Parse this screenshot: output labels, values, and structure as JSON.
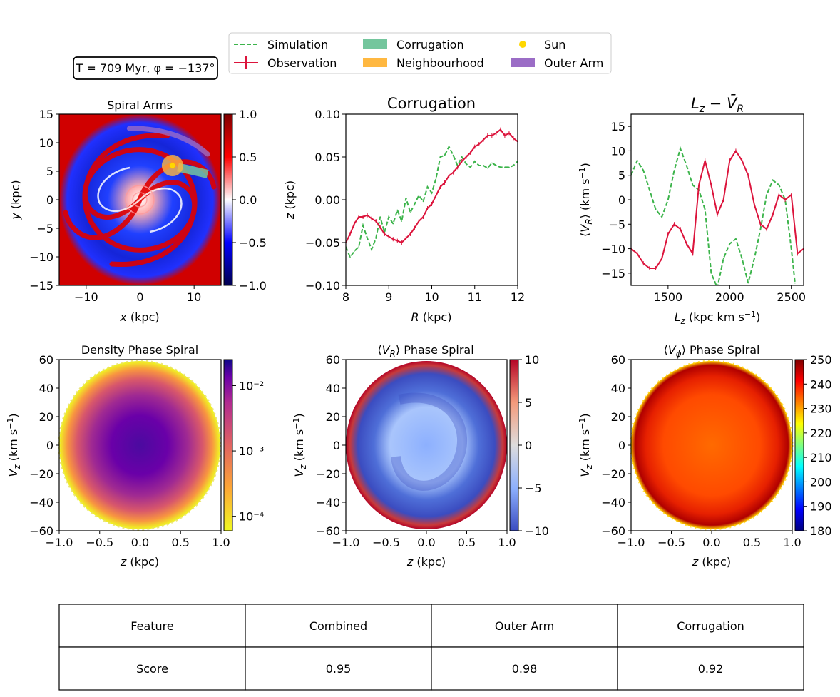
{
  "annotation": {
    "label": "T = 709 Myr,  φ = −137°"
  },
  "legend": {
    "placement": "top-center",
    "entries": [
      {
        "label": "Simulation",
        "style": "dashed-line",
        "color": "#3cb44b"
      },
      {
        "label": "Observation",
        "style": "line-errorbar",
        "color": "#dc143c"
      },
      {
        "label": "Corrugation",
        "style": "patch",
        "color": "#74c69d"
      },
      {
        "label": "Neighbourhood",
        "style": "patch",
        "color": "#ffb841"
      },
      {
        "label": "Sun",
        "style": "marker",
        "color": "#ffd700"
      },
      {
        "label": "Outer Arm",
        "style": "patch",
        "color": "#9b6dc6"
      }
    ]
  },
  "colors": {
    "simulation": "#3cb44b",
    "observation": "#dc143c"
  },
  "chart_data": [
    {
      "type": "heatmap",
      "title": "Spiral Arms",
      "xlabel": "x (kpc)",
      "ylabel": "y (kpc)",
      "xlim": [
        -15,
        15
      ],
      "ylim": [
        -15,
        15
      ],
      "xticks": [
        -10,
        0,
        10
      ],
      "yticks": [
        -15,
        -10,
        -5,
        0,
        5,
        10,
        15
      ],
      "colormap": "seismic",
      "colorbar": {
        "min": -1.0,
        "max": 1.0,
        "scale": "linear",
        "ticks": [
          "1.0",
          "0.5",
          "0.0",
          "−0.5",
          "−1.0"
        ]
      },
      "overlays": {
        "sun": {
          "x": 6,
          "y": 6
        },
        "neighbourhood": {
          "x": 6,
          "y": 6
        },
        "corrugation_path": {
          "x": [
            7,
            12.5
          ],
          "y": [
            5.7,
            4.5
          ]
        },
        "outer_arm_path": {
          "x": [
            -2,
            4,
            9,
            12.5
          ],
          "y": [
            12.5,
            12.6,
            11,
            8
          ]
        }
      }
    },
    {
      "type": "line",
      "title": "Corrugation",
      "xlabel": "R (kpc)",
      "ylabel": "z (kpc)",
      "xlim": [
        8,
        12
      ],
      "ylim": [
        -0.1,
        0.1
      ],
      "xticks": [
        8,
        9,
        10,
        11,
        12
      ],
      "yticks": [
        "−0.10",
        "−0.05",
        "0.00",
        "0.05",
        "0.10"
      ],
      "series": [
        {
          "name": "Simulation",
          "x": [
            8.0,
            8.1,
            8.2,
            8.3,
            8.4,
            8.5,
            8.6,
            8.7,
            8.8,
            8.9,
            9.0,
            9.1,
            9.2,
            9.3,
            9.4,
            9.5,
            9.6,
            9.7,
            9.8,
            9.9,
            10.0,
            10.1,
            10.2,
            10.3,
            10.4,
            10.5,
            10.6,
            10.7,
            10.8,
            10.9,
            11.0,
            11.1,
            11.2,
            11.3,
            11.4,
            11.5,
            11.6,
            11.7,
            11.8,
            11.9,
            12.0
          ],
          "y": [
            -0.055,
            -0.067,
            -0.06,
            -0.055,
            -0.03,
            -0.045,
            -0.058,
            -0.045,
            -0.02,
            -0.038,
            -0.02,
            -0.028,
            -0.012,
            -0.025,
            0.002,
            -0.015,
            -0.005,
            0.005,
            -0.002,
            0.015,
            0.008,
            0.025,
            0.05,
            0.052,
            0.062,
            0.052,
            0.04,
            0.05,
            0.042,
            0.038,
            0.045,
            0.04,
            0.04,
            0.037,
            0.043,
            0.04,
            0.038,
            0.038,
            0.038,
            0.04,
            0.045
          ]
        },
        {
          "name": "Observation",
          "x": [
            8.0,
            8.1,
            8.2,
            8.3,
            8.4,
            8.5,
            8.6,
            8.7,
            8.8,
            8.9,
            9.0,
            9.1,
            9.2,
            9.3,
            9.4,
            9.5,
            9.6,
            9.7,
            9.8,
            9.9,
            10.0,
            10.1,
            10.2,
            10.3,
            10.4,
            10.5,
            10.6,
            10.7,
            10.8,
            10.9,
            11.0,
            11.1,
            11.2,
            11.3,
            11.4,
            11.5,
            11.6,
            11.7,
            11.8,
            11.9,
            12.0
          ],
          "y": [
            -0.05,
            -0.04,
            -0.028,
            -0.02,
            -0.02,
            -0.018,
            -0.022,
            -0.025,
            -0.032,
            -0.04,
            -0.043,
            -0.046,
            -0.048,
            -0.05,
            -0.045,
            -0.04,
            -0.033,
            -0.025,
            -0.02,
            -0.01,
            -0.005,
            0.005,
            0.015,
            0.02,
            0.028,
            0.032,
            0.038,
            0.045,
            0.05,
            0.055,
            0.062,
            0.065,
            0.07,
            0.075,
            0.075,
            0.078,
            0.082,
            0.075,
            0.078,
            0.072,
            0.068
          ]
        }
      ]
    },
    {
      "type": "line",
      "title": "Lz − V̄R",
      "xlabel": "Lz (kpc km s⁻¹)",
      "ylabel": "⟨VR⟩ (km s⁻¹)",
      "xlim": [
        1200,
        2600
      ],
      "ylim": [
        -17.5,
        17.5
      ],
      "xticks": [
        1500,
        2000,
        2500
      ],
      "yticks": [
        "15",
        "10",
        "5",
        "0",
        "−5",
        "−10",
        "−15"
      ],
      "series": [
        {
          "name": "Simulation",
          "x": [
            1200,
            1250,
            1300,
            1350,
            1400,
            1450,
            1500,
            1550,
            1600,
            1650,
            1700,
            1750,
            1800,
            1850,
            1900,
            1950,
            2000,
            2050,
            2100,
            2150,
            2200,
            2250,
            2300,
            2350,
            2400,
            2450,
            2500,
            2530
          ],
          "y": [
            5,
            8,
            6,
            2,
            -2,
            -3.5,
            0,
            6,
            10.5,
            7,
            3,
            2,
            -2,
            -15,
            -18,
            -12,
            -9,
            -8,
            -12,
            -17,
            -12,
            -6,
            1,
            4,
            3,
            0,
            -10,
            -17
          ]
        },
        {
          "name": "Observation",
          "x": [
            1200,
            1250,
            1300,
            1350,
            1400,
            1450,
            1500,
            1550,
            1600,
            1650,
            1700,
            1750,
            1800,
            1850,
            1900,
            1950,
            2000,
            2050,
            2100,
            2150,
            2200,
            2250,
            2300,
            2350,
            2400,
            2450,
            2500,
            2550,
            2600
          ],
          "y": [
            -10,
            -11,
            -13,
            -14,
            -14,
            -12,
            -7,
            -5,
            -6,
            -9,
            -11,
            3,
            8,
            3,
            -3,
            0,
            8,
            10,
            8,
            5,
            -1,
            -5,
            -6,
            -3,
            1,
            0,
            1,
            -11,
            -10
          ]
        }
      ]
    },
    {
      "type": "heatmap",
      "title": "Density Phase Spiral",
      "xlabel": "z (kpc)",
      "ylabel": "Vz (km s⁻¹)",
      "xlim": [
        -1.0,
        1.0
      ],
      "ylim": [
        -60,
        60
      ],
      "xticks": [
        "−1.0",
        "−0.5",
        "0.0",
        "0.5",
        "1.0"
      ],
      "yticks": [
        "60",
        "40",
        "20",
        "0",
        "−20",
        "−40",
        "−60"
      ],
      "colormap": "plasma_r",
      "colorbar": {
        "min": 6e-05,
        "max": 0.025,
        "scale": "log",
        "ticks": [
          "10⁻²",
          "10⁻³",
          "10⁻⁴"
        ]
      }
    },
    {
      "type": "heatmap",
      "title": "⟨VR⟩ Phase Spiral",
      "xlabel": "z (kpc)",
      "ylabel": "Vz (km s⁻¹)",
      "xlim": [
        -1.0,
        1.0
      ],
      "ylim": [
        -60,
        60
      ],
      "xticks": [
        "−1.0",
        "−0.5",
        "0.0",
        "0.5",
        "1.0"
      ],
      "yticks": [
        "60",
        "40",
        "20",
        "0",
        "−20",
        "−40",
        "−60"
      ],
      "colormap": "coolwarm",
      "colorbar": {
        "min": -10,
        "max": 10,
        "scale": "linear",
        "ticks": [
          "10",
          "5",
          "0",
          "−5",
          "−10"
        ]
      }
    },
    {
      "type": "heatmap",
      "title": "⟨Vφ⟩ Phase Spiral",
      "xlabel": "z (kpc)",
      "ylabel": "Vz (km s⁻¹)",
      "xlim": [
        -1.0,
        1.0
      ],
      "ylim": [
        -60,
        60
      ],
      "xticks": [
        "−1.0",
        "−0.5",
        "0.0",
        "0.5",
        "1.0"
      ],
      "yticks": [
        "60",
        "40",
        "20",
        "0",
        "−20",
        "−40",
        "−60"
      ],
      "colormap": "jet",
      "colorbar": {
        "min": 180,
        "max": 250,
        "scale": "linear",
        "ticks": [
          "250",
          "240",
          "230",
          "220",
          "210",
          "200",
          "190",
          "180"
        ]
      }
    },
    {
      "type": "table",
      "rows": [
        [
          "Feature",
          "Combined",
          "Outer Arm",
          "Corrugation"
        ],
        [
          "Score",
          "0.95",
          "0.98",
          "0.92"
        ]
      ]
    }
  ]
}
